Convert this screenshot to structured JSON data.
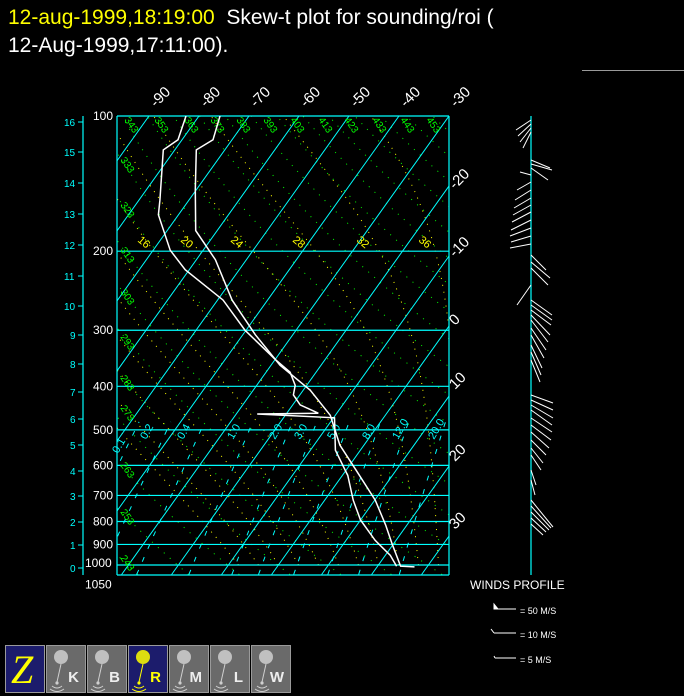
{
  "title": {
    "datetime": "12-aug-1999,18:19:00",
    "text": "  Skew-t plot for sounding/roi (",
    "line2": "12-Aug-1999,17:11:00)."
  },
  "colors": {
    "title_highlight": "#ffff00",
    "grid": "#00ffff",
    "dry_adiabat": "#00ff00",
    "moist_adiabat": "#ffff00",
    "sounding": "#ffffff",
    "button_active": "#1c1c6c",
    "button_inactive": "#6a6a6a"
  },
  "chart_data": {
    "type": "skew-t",
    "y_axis_pressure_hpa": [
      "100",
      "200",
      "300",
      "400",
      "500",
      "600",
      "700",
      "800",
      "900",
      "1000",
      "1050"
    ],
    "height_axis_km": [
      "0",
      "1",
      "2",
      "3",
      "4",
      "5",
      "6",
      "7",
      "8",
      "9",
      "10",
      "11",
      "12",
      "13",
      "14",
      "15",
      "16"
    ],
    "isotherm_labels_top": [
      "-90",
      "-80",
      "-70",
      "-60",
      "-50",
      "-40",
      "-30"
    ],
    "isotherm_labels_right": [
      "-20",
      "-10",
      "0",
      "10",
      "20",
      "30"
    ],
    "dry_adiabat_labels_left": [
      "333",
      "323",
      "313",
      "303",
      "293",
      "283",
      "273",
      "263",
      "253",
      "243"
    ],
    "dry_adiabat_labels_top": [
      "343",
      "353",
      "363",
      "373",
      "383",
      "393",
      "403",
      "413",
      "423",
      "433",
      "443",
      "453"
    ],
    "moist_adiabat_labels": [
      "16",
      "20",
      "24",
      "28",
      "32",
      "36"
    ],
    "mixing_ratio_labels": [
      "0.1",
      "0.2",
      "0.4",
      "1.0",
      "2.0",
      "3.0",
      "5.0",
      "8.0",
      "12.0",
      "20.0"
    ],
    "temperature": [
      [
        1010,
        27.5
      ],
      [
        1006,
        24.6
      ],
      [
        901,
        19.9
      ],
      [
        814,
        15.7
      ],
      [
        717,
        10.1
      ],
      [
        615,
        2.0
      ],
      [
        541,
        -4.8
      ],
      [
        464,
        -11.0
      ],
      [
        408,
        -18.6
      ],
      [
        359,
        -28.2
      ],
      [
        307,
        -37.5
      ],
      [
        257,
        -47.1
      ],
      [
        209,
        -56.2
      ],
      [
        180,
        -64.3
      ],
      [
        146,
        -70.2
      ],
      [
        119,
        -75.7
      ],
      [
        113,
        -73.8
      ],
      [
        100,
        -75.8
      ]
    ],
    "dewpoint": [
      [
        1006,
        23.8
      ],
      [
        952,
        21.0
      ],
      [
        881,
        15.8
      ],
      [
        794,
        10.0
      ],
      [
        717,
        5.7
      ],
      [
        632,
        1.1
      ],
      [
        555,
        -5.0
      ],
      [
        470,
        -9.8
      ],
      [
        461,
        -25.8
      ],
      [
        459,
        -13.7
      ],
      [
        440,
        -18.5
      ],
      [
        418,
        -21.3
      ],
      [
        398,
        -22.3
      ],
      [
        372,
        -25.2
      ],
      [
        349,
        -29.9
      ],
      [
        300,
        -40.2
      ],
      [
        257,
        -48.9
      ],
      [
        220,
        -60.8
      ],
      [
        199,
        -66.6
      ],
      [
        166,
        -74.0
      ],
      [
        154,
        -75.8
      ],
      [
        119,
        -82.3
      ],
      [
        113,
        -80.8
      ],
      [
        100,
        -82.6
      ]
    ]
  },
  "legend": {
    "title": "WINDS PROFILE",
    "items": [
      "= 50 M/S",
      "= 10 M/S",
      "= 5 M/S"
    ]
  },
  "toolbar": {
    "buttons": [
      {
        "label": "Z",
        "icon": "z-logo-icon",
        "active": true
      },
      {
        "label": "K",
        "icon": "balloon-icon",
        "active": false
      },
      {
        "label": "B",
        "icon": "balloon-icon",
        "active": false
      },
      {
        "label": "R",
        "icon": "balloon-icon",
        "active": true
      },
      {
        "label": "M",
        "icon": "balloon-icon",
        "active": false
      },
      {
        "label": "L",
        "icon": "balloon-icon",
        "active": false
      },
      {
        "label": "W",
        "icon": "balloon-icon",
        "active": false
      }
    ]
  }
}
